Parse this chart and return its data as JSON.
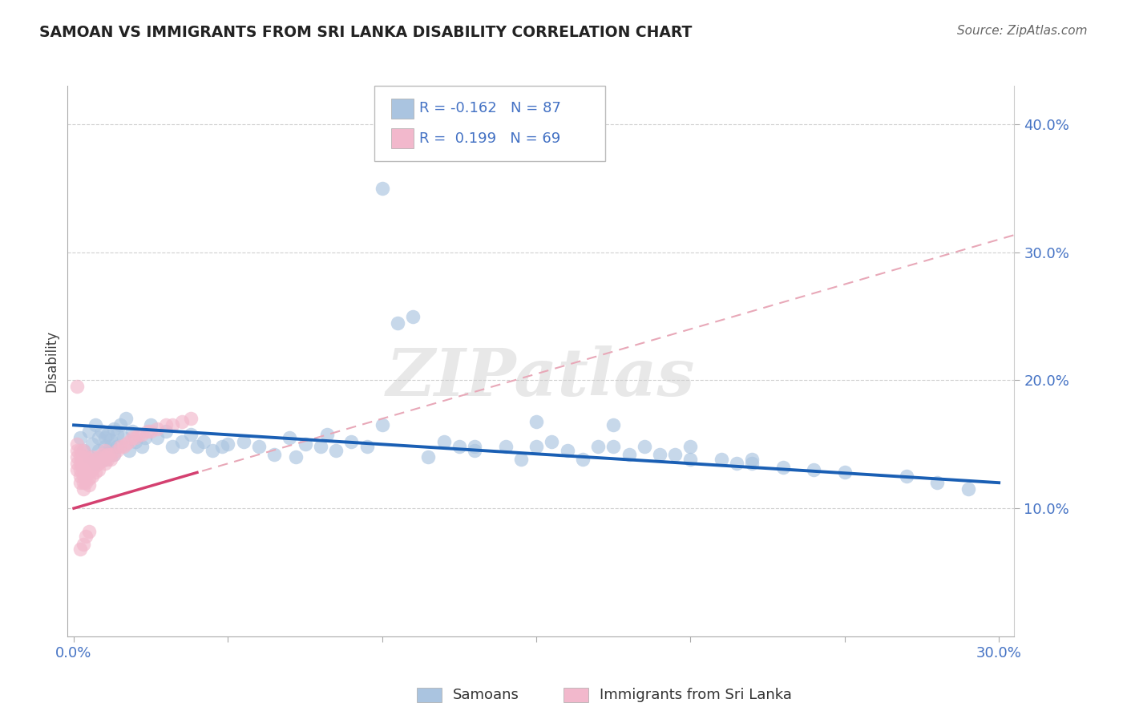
{
  "title": "SAMOAN VS IMMIGRANTS FROM SRI LANKA DISABILITY CORRELATION CHART",
  "source": "Source: ZipAtlas.com",
  "ylabel": "Disability",
  "xlim": [
    -0.002,
    0.305
  ],
  "ylim": [
    0.0,
    0.43
  ],
  "xticks": [
    0.0,
    0.05,
    0.1,
    0.15,
    0.2,
    0.25,
    0.3
  ],
  "xtick_labels": [
    "0.0%",
    "",
    "",
    "",
    "",
    "",
    "30.0%"
  ],
  "yticks": [
    0.1,
    0.2,
    0.3,
    0.4
  ],
  "background_color": "#ffffff",
  "grid_color": "#d0d0d0",
  "samoan_color": "#aac4e0",
  "srilanka_color": "#f2b8cc",
  "samoan_line_color": "#1a5fb4",
  "srilanka_solid_color": "#d44070",
  "srilanka_dash_color": "#e8a8b8",
  "tick_color": "#4472c4",
  "title_color": "#222222",
  "source_color": "#666666",
  "R_samoan": -0.162,
  "N_samoan": 87,
  "R_srilanka": 0.199,
  "N_srilanka": 69,
  "legend_label_samoan": "Samoans",
  "legend_label_srilanka": "Immigrants from Sri Lanka",
  "watermark": "ZIPatlas",
  "samoan_x": [
    0.002,
    0.003,
    0.005,
    0.005,
    0.006,
    0.007,
    0.007,
    0.008,
    0.008,
    0.009,
    0.009,
    0.01,
    0.01,
    0.01,
    0.011,
    0.011,
    0.012,
    0.012,
    0.013,
    0.013,
    0.014,
    0.014,
    0.015,
    0.016,
    0.017,
    0.018,
    0.019,
    0.02,
    0.022,
    0.023,
    0.025,
    0.027,
    0.03,
    0.032,
    0.035,
    0.038,
    0.04,
    0.042,
    0.045,
    0.048,
    0.05,
    0.055,
    0.06,
    0.065,
    0.07,
    0.072,
    0.075,
    0.08,
    0.082,
    0.085,
    0.09,
    0.095,
    0.1,
    0.105,
    0.11,
    0.115,
    0.12,
    0.125,
    0.13,
    0.14,
    0.145,
    0.15,
    0.155,
    0.16,
    0.165,
    0.17,
    0.175,
    0.18,
    0.185,
    0.19,
    0.195,
    0.2,
    0.21,
    0.215,
    0.22,
    0.23,
    0.24,
    0.25,
    0.27,
    0.28,
    0.29,
    0.1,
    0.15,
    0.2,
    0.13,
    0.175,
    0.22
  ],
  "samoan_y": [
    0.155,
    0.145,
    0.16,
    0.14,
    0.15,
    0.165,
    0.135,
    0.155,
    0.145,
    0.16,
    0.14,
    0.155,
    0.148,
    0.138,
    0.158,
    0.143,
    0.153,
    0.148,
    0.162,
    0.142,
    0.158,
    0.148,
    0.165,
    0.155,
    0.17,
    0.145,
    0.16,
    0.152,
    0.148,
    0.155,
    0.165,
    0.155,
    0.16,
    0.148,
    0.152,
    0.158,
    0.148,
    0.152,
    0.145,
    0.148,
    0.15,
    0.152,
    0.148,
    0.142,
    0.155,
    0.14,
    0.15,
    0.148,
    0.158,
    0.145,
    0.152,
    0.148,
    0.35,
    0.245,
    0.25,
    0.14,
    0.152,
    0.148,
    0.145,
    0.148,
    0.138,
    0.148,
    0.152,
    0.145,
    0.138,
    0.148,
    0.148,
    0.142,
    0.148,
    0.142,
    0.142,
    0.138,
    0.138,
    0.135,
    0.135,
    0.132,
    0.13,
    0.128,
    0.125,
    0.12,
    0.115,
    0.165,
    0.168,
    0.148,
    0.148,
    0.165,
    0.138
  ],
  "srilanka_x": [
    0.001,
    0.001,
    0.001,
    0.001,
    0.001,
    0.001,
    0.002,
    0.002,
    0.002,
    0.002,
    0.002,
    0.002,
    0.003,
    0.003,
    0.003,
    0.003,
    0.003,
    0.003,
    0.003,
    0.004,
    0.004,
    0.004,
    0.004,
    0.004,
    0.005,
    0.005,
    0.005,
    0.005,
    0.005,
    0.006,
    0.006,
    0.006,
    0.006,
    0.007,
    0.007,
    0.007,
    0.008,
    0.008,
    0.008,
    0.009,
    0.009,
    0.01,
    0.01,
    0.01,
    0.011,
    0.011,
    0.012,
    0.012,
    0.013,
    0.014,
    0.015,
    0.016,
    0.017,
    0.018,
    0.019,
    0.02,
    0.021,
    0.022,
    0.024,
    0.025,
    0.027,
    0.03,
    0.032,
    0.035,
    0.038,
    0.002,
    0.003,
    0.004,
    0.005
  ],
  "srilanka_y": [
    0.195,
    0.15,
    0.145,
    0.14,
    0.135,
    0.13,
    0.145,
    0.14,
    0.135,
    0.13,
    0.125,
    0.12,
    0.145,
    0.14,
    0.135,
    0.13,
    0.125,
    0.12,
    0.115,
    0.14,
    0.135,
    0.13,
    0.125,
    0.12,
    0.138,
    0.133,
    0.128,
    0.123,
    0.118,
    0.14,
    0.135,
    0.13,
    0.125,
    0.138,
    0.133,
    0.128,
    0.14,
    0.135,
    0.13,
    0.142,
    0.137,
    0.145,
    0.14,
    0.135,
    0.142,
    0.138,
    0.142,
    0.138,
    0.142,
    0.145,
    0.148,
    0.148,
    0.15,
    0.152,
    0.155,
    0.155,
    0.158,
    0.158,
    0.16,
    0.16,
    0.162,
    0.165,
    0.165,
    0.168,
    0.17,
    0.068,
    0.072,
    0.078,
    0.082
  ]
}
